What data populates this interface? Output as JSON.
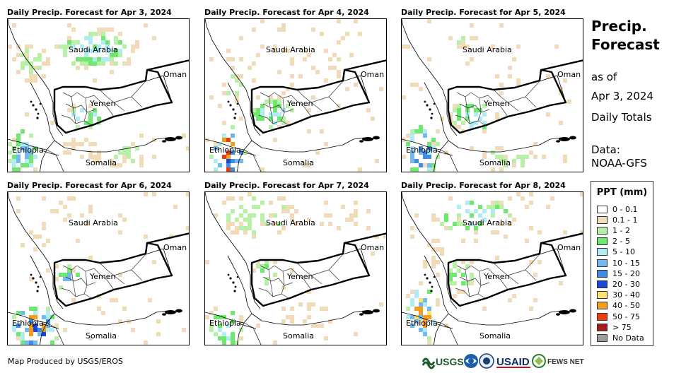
{
  "panels": [
    {
      "title": "Daily Precip. Forecast for Apr 3, 2024",
      "density": 1.0,
      "extra": 0.9
    },
    {
      "title": "Daily Precip. Forecast for Apr 4, 2024",
      "density": 0.75,
      "extra": 1.2
    },
    {
      "title": "Daily Precip. Forecast for Apr 5, 2024",
      "density": 0.7,
      "extra": 1.0
    },
    {
      "title": "Daily Precip. Forecast for Apr 6, 2024",
      "density": 0.35,
      "extra": 1.3
    },
    {
      "title": "Daily Precip. Forecast for Apr 7, 2024",
      "density": 0.6,
      "extra": 0.6
    },
    {
      "title": "Daily Precip. Forecast for Apr 8, 2024",
      "density": 0.65,
      "extra": 0.9
    }
  ],
  "map_labels": {
    "saudi": "Saudi Arabia",
    "oman": "Oman",
    "yemen": "Yemen",
    "ethiopia": "Ethiopia",
    "somalia": "Somalia"
  },
  "side": {
    "title_line1": "Precip.",
    "title_line2": "Forecast",
    "as_of": "as of",
    "date": "Apr 3, 2024",
    "totals": "Daily Totals",
    "data_label": "Data:",
    "data_source": "NOAA-GFS"
  },
  "legend": {
    "title": "PPT (mm)",
    "items": [
      {
        "label": "0 - 0.1",
        "color": "#ffffff"
      },
      {
        "label": "0.1 - 1",
        "color": "#f0dcb8"
      },
      {
        "label": "1 - 2",
        "color": "#b8f0a8"
      },
      {
        "label": "2 - 5",
        "color": "#6ee86e"
      },
      {
        "label": "5 - 10",
        "color": "#b0ecf4"
      },
      {
        "label": "10 - 15",
        "color": "#74b8ec"
      },
      {
        "label": "15 - 20",
        "color": "#3c8ce8"
      },
      {
        "label": "20 - 30",
        "color": "#1848d8"
      },
      {
        "label": "30 - 40",
        "color": "#fce070"
      },
      {
        "label": "40 - 50",
        "color": "#f49c1c"
      },
      {
        "label": "50 - 75",
        "color": "#ec3c0c"
      },
      {
        "label": "> 75",
        "color": "#a81c1c"
      },
      {
        "label": "No Data",
        "color": "#9c9c9c"
      }
    ]
  },
  "footer": {
    "credit": "Map Produced by USGS/EROS",
    "usgs": "USGS",
    "usaid": "USAID",
    "fewsnet": "FEWS NET"
  }
}
